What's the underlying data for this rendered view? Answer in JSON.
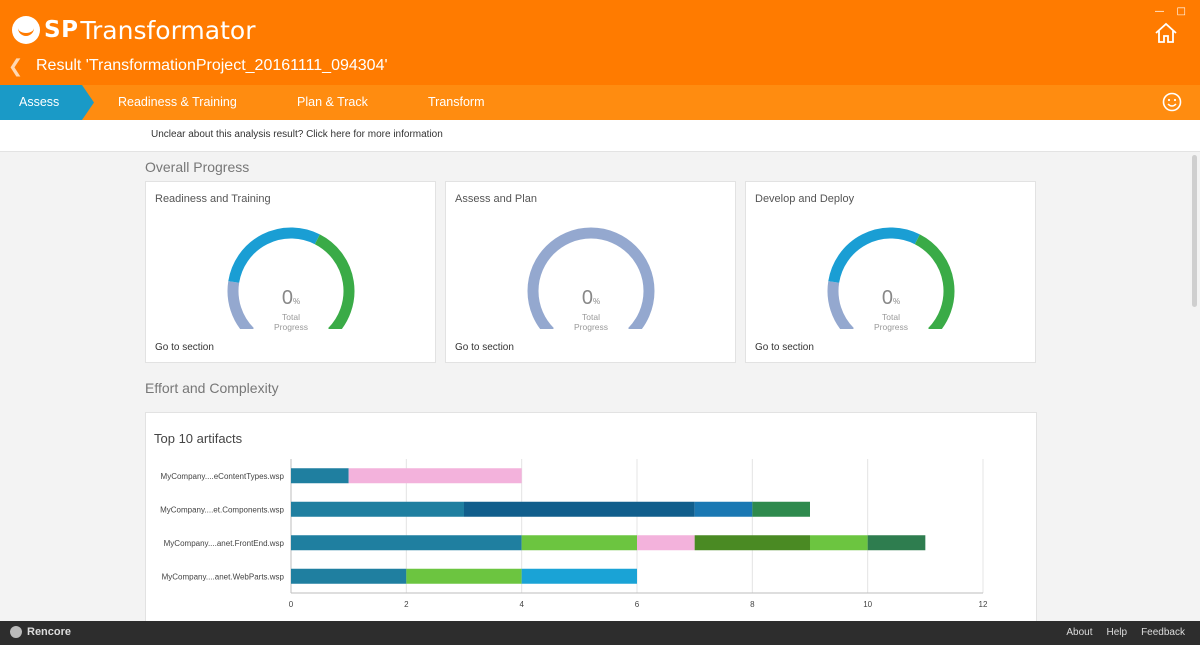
{
  "app": {
    "logo_bold": "SP",
    "logo_rest": "Transformator",
    "result_title": "Result 'TransformationProject_20161111_094304'"
  },
  "tabs": [
    {
      "label": "Assess",
      "active": true
    },
    {
      "label": "Readiness & Training"
    },
    {
      "label": "Plan & Track"
    },
    {
      "label": "Transform"
    }
  ],
  "info_link": "Unclear about this analysis result? Click here for more information",
  "overall": {
    "title": "Overall Progress",
    "cards": [
      {
        "title": "Readiness and Training",
        "value": "0",
        "unit": "%",
        "label1": "Total",
        "label2": "Progress",
        "link": "Go to section",
        "segments": [
          {
            "fraction": 0.2,
            "color": "#94a8cf"
          },
          {
            "fraction": 0.4,
            "color": "#1a9ed4"
          },
          {
            "fraction": 0.4,
            "color": "#3aab47"
          }
        ]
      },
      {
        "title": "Assess and Plan",
        "value": "0",
        "unit": "%",
        "label1": "Total",
        "label2": "Progress",
        "link": "Go to section",
        "segments": [
          {
            "fraction": 1.0,
            "color": "#94a8cf"
          }
        ]
      },
      {
        "title": "Develop and Deploy",
        "value": "0",
        "unit": "%",
        "label1": "Total",
        "label2": "Progress",
        "link": "Go to section",
        "segments": [
          {
            "fraction": 0.2,
            "color": "#94a8cf"
          },
          {
            "fraction": 0.4,
            "color": "#1a9ed4"
          },
          {
            "fraction": 0.4,
            "color": "#3aab47"
          }
        ]
      }
    ]
  },
  "effort": {
    "title": "Effort and Complexity"
  },
  "chart_data": {
    "type": "bar",
    "orientation": "horizontal",
    "stacked": true,
    "title": "Top 10 artifacts",
    "categories": [
      "MyCompany....eContentTypes.wsp",
      "MyCompany....et.Components.wsp",
      "MyCompany....anet.FrontEnd.wsp",
      "MyCompany....anet.WebParts.wsp"
    ],
    "segments": [
      [
        {
          "value": 1,
          "color": "#1f7fa0"
        },
        {
          "value": 3,
          "color": "#f3b2dc"
        }
      ],
      [
        {
          "value": 3,
          "color": "#1f7fa0"
        },
        {
          "value": 4,
          "color": "#115e8c"
        },
        {
          "value": 1,
          "color": "#1a78b3"
        },
        {
          "value": 1,
          "color": "#2e8a4d"
        }
      ],
      [
        {
          "value": 4,
          "color": "#1f7fa0"
        },
        {
          "value": 2,
          "color": "#6cc540"
        },
        {
          "value": 1,
          "color": "#f3b2dc"
        },
        {
          "value": 2,
          "color": "#4a8a23"
        },
        {
          "value": 1,
          "color": "#6cc540"
        },
        {
          "value": 1,
          "color": "#2e7d4f"
        }
      ],
      [
        {
          "value": 2,
          "color": "#1f7fa0"
        },
        {
          "value": 2,
          "color": "#6cc540"
        },
        {
          "value": 2,
          "color": "#1aa3d6"
        }
      ]
    ],
    "xlim": [
      0,
      12
    ],
    "xticks": [
      0,
      2,
      4,
      6,
      8,
      10,
      12
    ],
    "grid": true
  },
  "footer": {
    "brand": "Rencore",
    "links": [
      "About",
      "Help",
      "Feedback"
    ]
  }
}
